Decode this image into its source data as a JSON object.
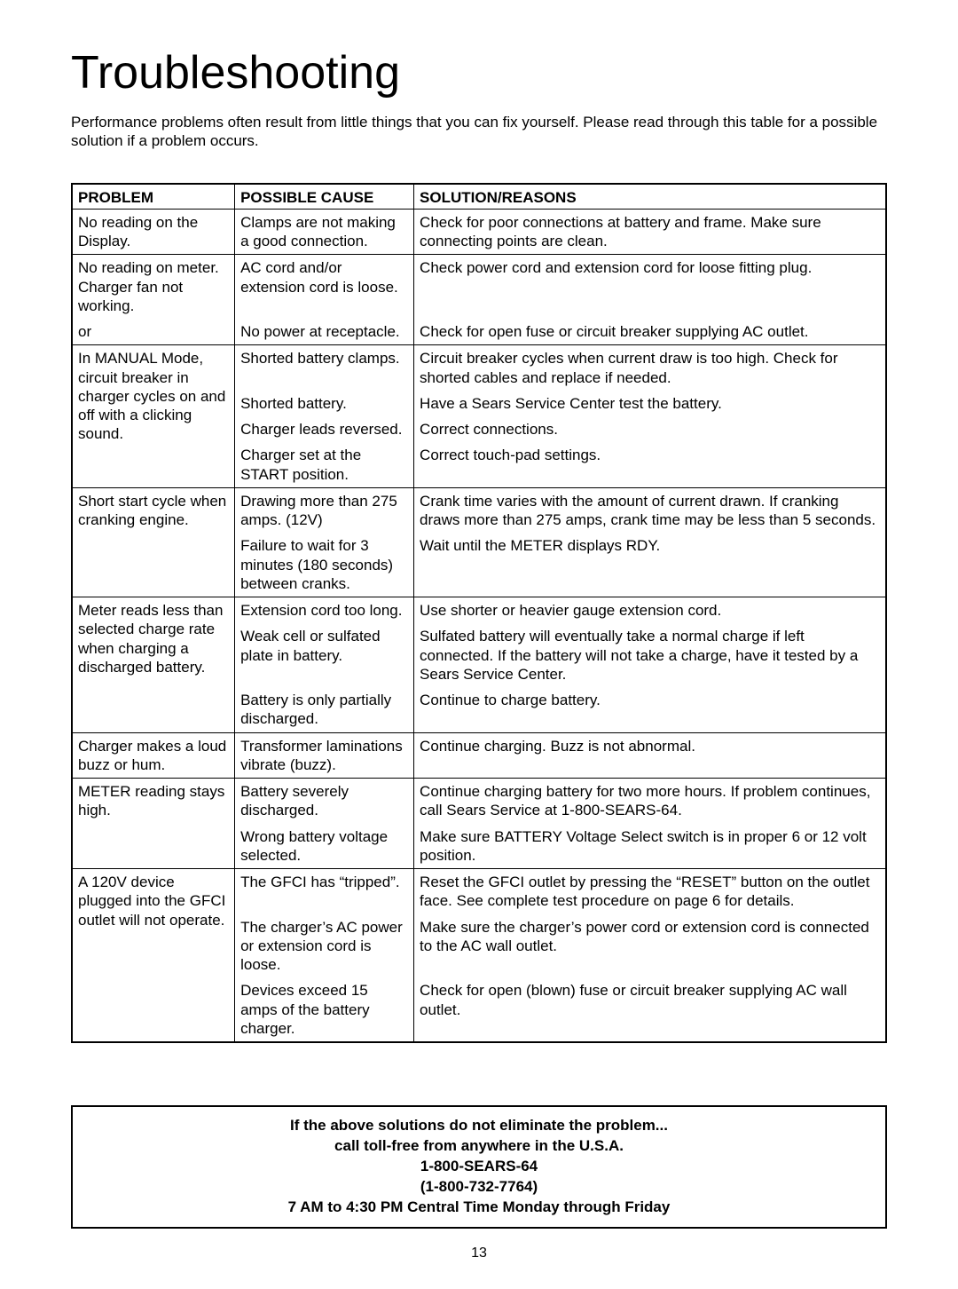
{
  "title": "Troubleshooting",
  "intro": "Performance problems often result from little things that you can fix yourself. Please read through this table for a possible solution if a problem occurs.",
  "headers": {
    "problem": "PROBLEM",
    "cause": "POSSIBLE CAUSE",
    "solution": "SOLUTION/REASONS"
  },
  "rows": {
    "r1": {
      "problem": "No reading on the Display.",
      "cause": "Clamps are not making a good connection.",
      "solution": "Check for poor connections at battery and frame. Make sure connecting points are clean."
    },
    "r2": {
      "problem": "No reading on meter. Charger fan not working.",
      "cause": "AC cord and/or extension cord is loose.",
      "solution": "Check power cord and extension cord for loose fitting plug."
    },
    "r2b": {
      "problem": "or",
      "cause": "No power at receptacle.",
      "solution": "Check for open fuse or circuit breaker supplying AC outlet."
    },
    "r3": {
      "problem": "In MANUAL Mode, circuit breaker in charger cycles on and off with a clicking sound.",
      "cause": "Shorted battery clamps.",
      "solution": "Circuit breaker cycles when current draw is too high. Check for shorted cables and replace if needed."
    },
    "r3b": {
      "cause": "Shorted battery.",
      "solution": "Have a Sears Service Center test the battery."
    },
    "r3c": {
      "cause": "Charger leads reversed.",
      "solution": "Correct connections."
    },
    "r3d": {
      "cause": "Charger set at the START position.",
      "solution": "Correct touch-pad settings."
    },
    "r4": {
      "problem": "Short start cycle when cranking engine.",
      "cause": "Drawing more than 275 amps. (12V)",
      "solution": "Crank time varies with the amount of current drawn. If cranking draws more than 275 amps, crank time may be less than 5 seconds."
    },
    "r4b": {
      "cause": "Failure to wait for 3 minutes (180 seconds) between cranks.",
      "solution": "Wait until the METER displays RDY."
    },
    "r5": {
      "problem": "Meter reads less than selected charge rate when charging a discharged battery.",
      "cause": "Extension cord too long.",
      "solution": "Use shorter or heavier gauge extension cord."
    },
    "r5b": {
      "cause": "Weak cell or sulfated plate in battery.",
      "solution": "Sulfated battery will eventually take a normal charge if left connected. If the battery will not take a charge, have it tested by a Sears Service Center."
    },
    "r5c": {
      "cause": "Battery is only partially discharged.",
      "solution": "Continue to charge battery."
    },
    "r6": {
      "problem": "Charger makes a loud buzz or hum.",
      "cause": "Transformer laminations vibrate (buzz).",
      "solution": "Continue charging. Buzz is not abnormal."
    },
    "r7": {
      "problem": "METER reading stays high.",
      "cause": "Battery severely discharged.",
      "solution": "Continue charging battery for two more hours. If problem continues, call Sears Service at 1-800-SEARS-64."
    },
    "r7b": {
      "cause": "Wrong battery voltage selected.",
      "solution": "Make sure BATTERY Voltage Select switch is in proper 6 or 12 volt position."
    },
    "r8": {
      "problem": "A 120V device plugged into the GFCI outlet will not operate.",
      "cause": "The GFCI has “tripped”.",
      "solution": "Reset the GFCI outlet by pressing the “RESET” button on the outlet face. See complete test procedure on page 6 for details."
    },
    "r8b": {
      "cause": "The charger’s AC power or extension cord is loose.",
      "solution": "Make sure the charger’s power cord or extension cord is connected to the AC wall outlet."
    },
    "r8c": {
      "cause": "Devices exceed 15 amps of the battery charger.",
      "solution": "Check for open (blown) fuse or circuit breaker supplying AC wall outlet."
    }
  },
  "callout": {
    "l1": "If the above solutions do not eliminate the problem...",
    "l2": "call toll-free from anywhere in the U.S.A.",
    "l3": "1-800-SEARS-64",
    "l4": "(1-800-732-7764)",
    "l5": "7 AM to 4:30 PM Central Time Monday through Friday"
  },
  "page_number": "13"
}
